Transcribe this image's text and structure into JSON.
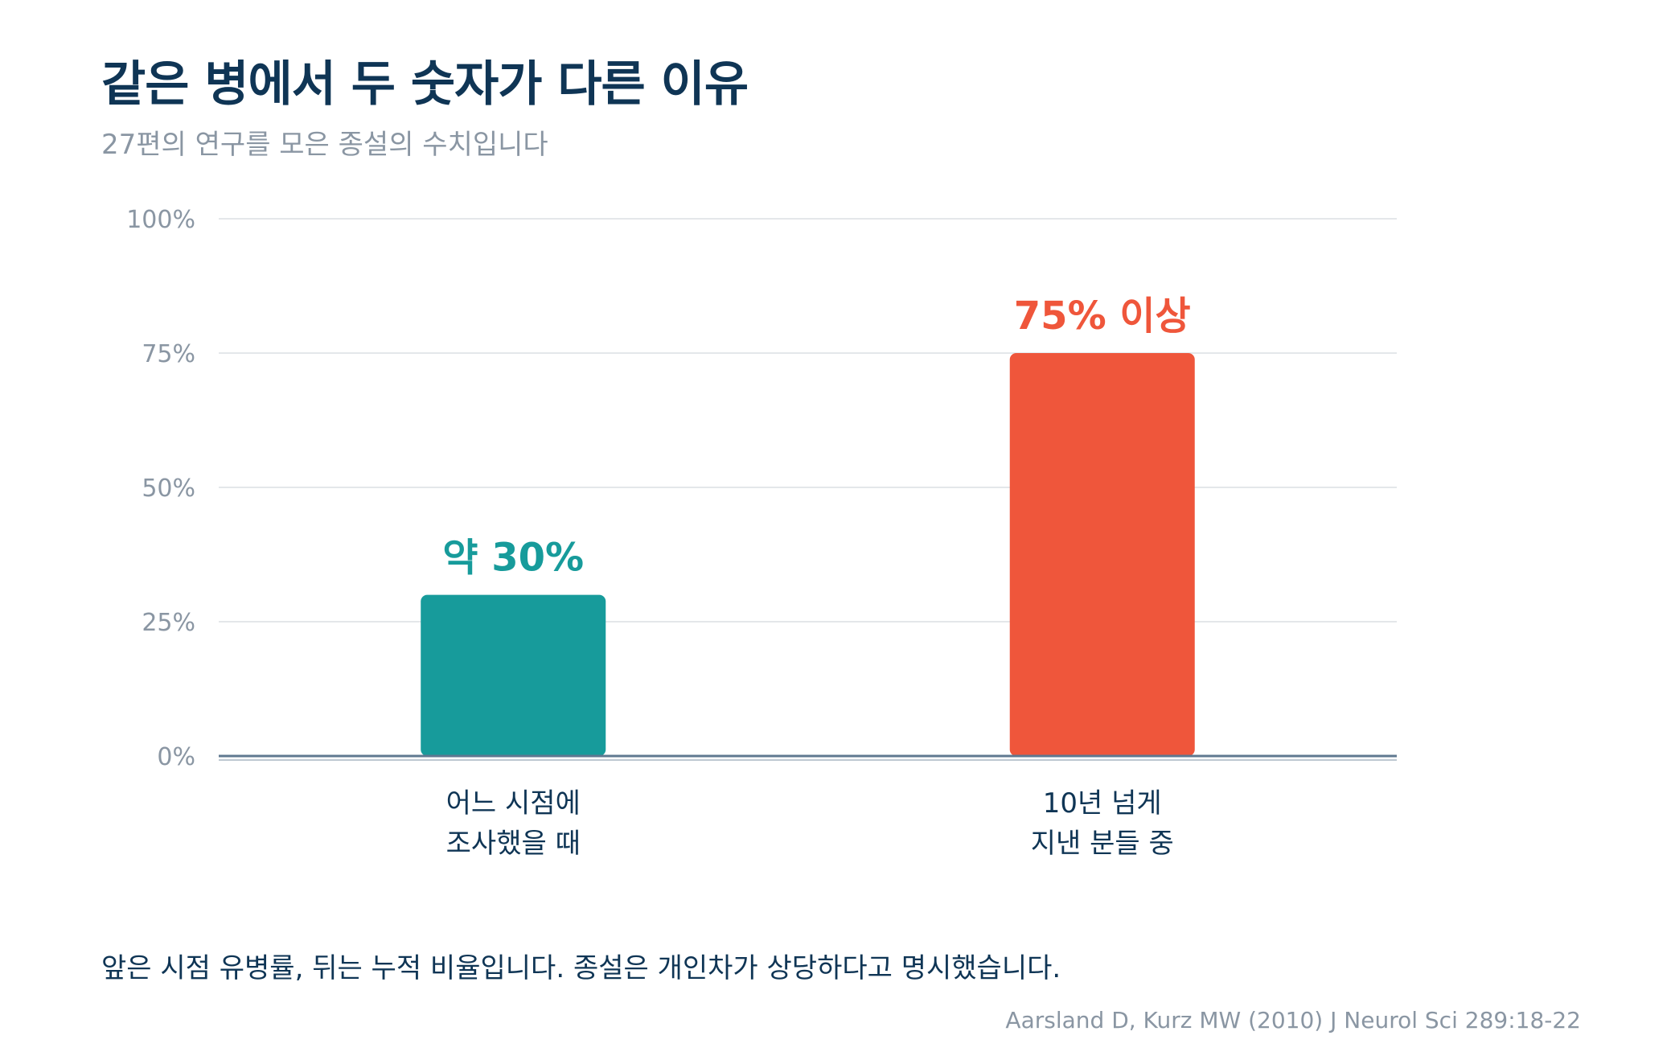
{
  "title": "같은 병에서 두 숫자가 다른 이유",
  "subtitle": "27편의 연구를 모은 종설의 수치입니다",
  "note": "앞은 시점 유병률, 뒤는 누적 비율입니다. 종설은 개인차가 상당하다고 명시했습니다.",
  "source": "Aarsland D, Kurz MW (2010) J Neurol Sci 289:18-22",
  "colors": {
    "teal": "#179b9b",
    "red": "#ef563b",
    "grid": "#e4e7ea",
    "axis": "#5f7890",
    "tick_text": "#8a96a3",
    "category_text": "#0f3555"
  },
  "chart_data": {
    "type": "bar",
    "categories": [
      [
        "어느 시점에",
        "조사했을 때"
      ],
      [
        "10년 넘게",
        "지낸 분들 중"
      ]
    ],
    "values": [
      30,
      75
    ],
    "value_labels": [
      "약 30%",
      "75% 이상"
    ],
    "bar_colors": [
      "#179b9b",
      "#ef563b"
    ],
    "ylim": [
      0,
      100
    ],
    "yticks": [
      0,
      25,
      50,
      75,
      100
    ],
    "ytick_labels": [
      "0%",
      "25%",
      "50%",
      "75%",
      "100%"
    ],
    "grid": true,
    "title": "같은 병에서 두 숫자가 다른 이유",
    "xlabel": "",
    "ylabel": ""
  }
}
